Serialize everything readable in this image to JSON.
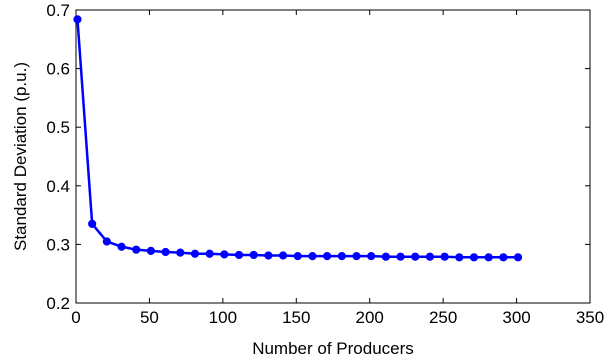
{
  "chart_data": {
    "type": "line",
    "title": "",
    "xlabel": "Number of Producers",
    "ylabel": "Standard Deviation (p.u.)",
    "xlim": [
      0,
      350
    ],
    "ylim": [
      0.2,
      0.7
    ],
    "xticks": [
      0,
      50,
      100,
      150,
      200,
      250,
      300,
      350
    ],
    "yticks": [
      0.2,
      0.3,
      0.4,
      0.5,
      0.6,
      0.7
    ],
    "grid": false,
    "legend": "none",
    "series": [
      {
        "color": "#0000ff",
        "marker": "circle",
        "x": [
          1,
          11,
          21,
          31,
          41,
          51,
          61,
          71,
          81,
          91,
          101,
          111,
          121,
          131,
          141,
          151,
          161,
          171,
          181,
          191,
          201,
          211,
          221,
          231,
          241,
          251,
          261,
          271,
          281,
          291,
          301
        ],
        "y": [
          0.684,
          0.335,
          0.305,
          0.296,
          0.291,
          0.289,
          0.287,
          0.286,
          0.284,
          0.284,
          0.283,
          0.282,
          0.282,
          0.281,
          0.281,
          0.28,
          0.28,
          0.28,
          0.28,
          0.28,
          0.28,
          0.279,
          0.279,
          0.279,
          0.279,
          0.279,
          0.278,
          0.278,
          0.278,
          0.278,
          0.278
        ]
      }
    ]
  }
}
